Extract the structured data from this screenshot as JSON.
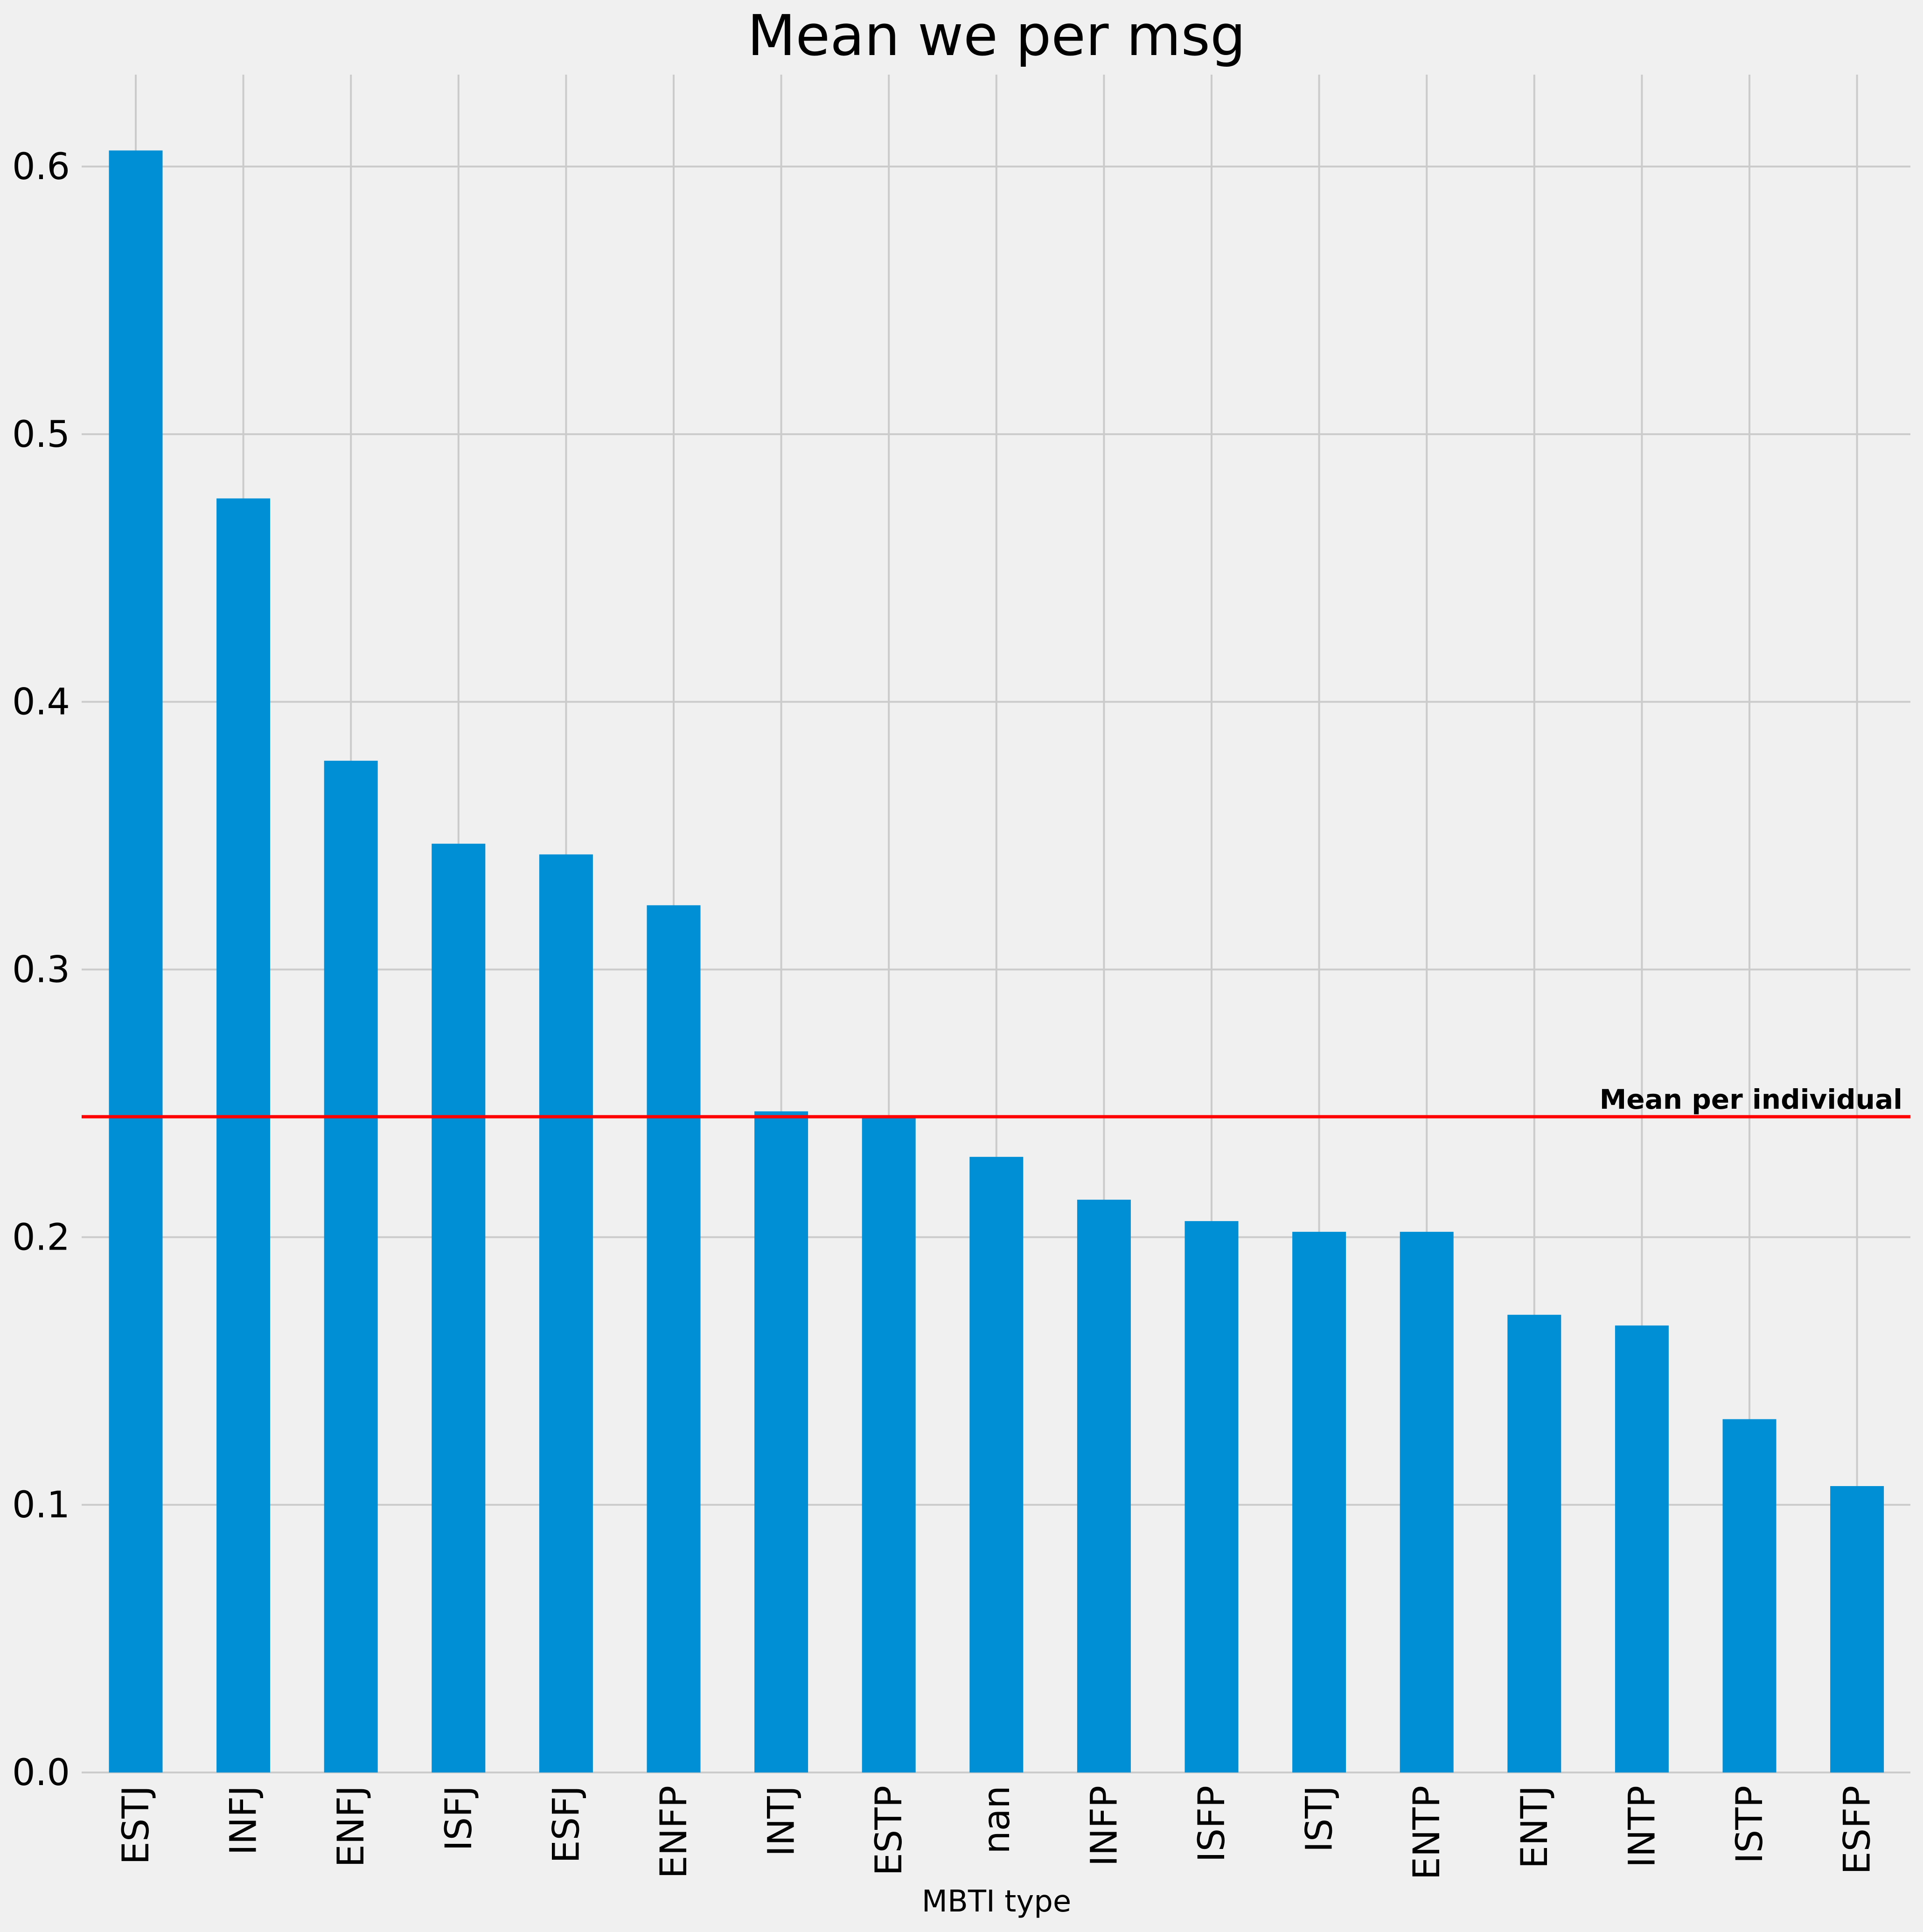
{
  "chart_data": {
    "type": "bar",
    "title": "Mean we per msg",
    "xlabel": "MBTI type",
    "ylabel": "",
    "categories": [
      "ESTJ",
      "INFJ",
      "ENFJ",
      "ISFJ",
      "ESFJ",
      "ENFP",
      "INTJ",
      "ESTP",
      "nan",
      "INFP",
      "ISFP",
      "ISTJ",
      "ENTP",
      "ENTJ",
      "INTP",
      "ISTP",
      "ESFP"
    ],
    "values": [
      0.606,
      0.476,
      0.378,
      0.347,
      0.343,
      0.324,
      0.247,
      0.245,
      0.23,
      0.214,
      0.206,
      0.202,
      0.202,
      0.171,
      0.167,
      0.132,
      0.107
    ],
    "ylim": [
      0,
      0.635
    ],
    "yticks": [
      0.0,
      0.1,
      0.2,
      0.3,
      0.4,
      0.5,
      0.6
    ],
    "ytick_labels": [
      "0.0",
      "0.1",
      "0.2",
      "0.3",
      "0.4",
      "0.5",
      "0.6"
    ],
    "grid": true,
    "reference_line": {
      "value": 0.245,
      "label": "Mean per individual",
      "color": "#ff0000"
    },
    "colors": {
      "bar": "#008fd5",
      "background": "#f0f0f0",
      "grid": "#cbcbcb"
    }
  }
}
